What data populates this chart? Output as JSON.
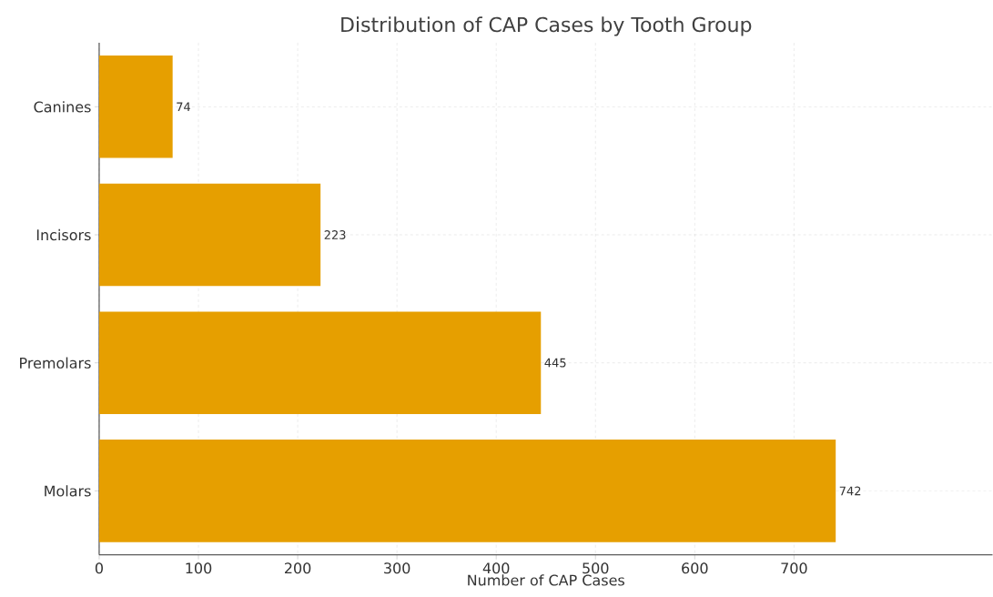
{
  "chart_data": {
    "type": "bar",
    "orientation": "horizontal",
    "title": "Distribution of CAP Cases by Tooth Group",
    "xlabel": "Number of CAP Cases",
    "categories": [
      "Canines",
      "Incisors",
      "Premolars",
      "Molars"
    ],
    "values": [
      74,
      223,
      445,
      742
    ],
    "color": "#e69f00",
    "xlim": [
      0,
      900
    ],
    "xticks": [
      0,
      100,
      200,
      300,
      400,
      500,
      600,
      700
    ],
    "grid": true,
    "data_labels": true
  }
}
